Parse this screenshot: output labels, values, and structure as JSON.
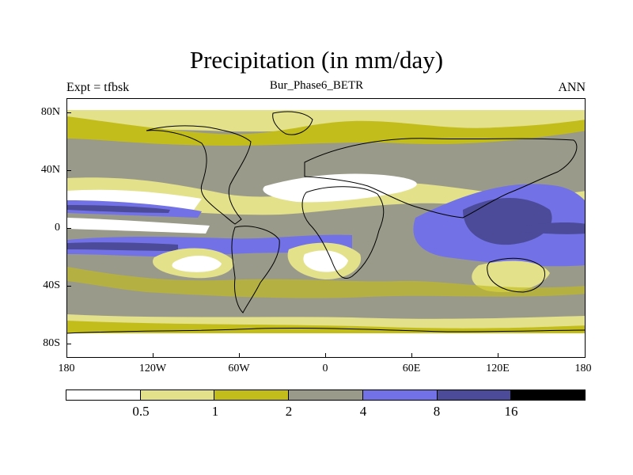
{
  "title": "Precipitation (in mm/day)",
  "subtitle": "Bur_Phase6_BETR",
  "left_label": "Expt = tfbsk",
  "right_label": "ANN",
  "lat_labels": [
    "80N",
    "40N",
    "0",
    "40S",
    "80S"
  ],
  "lon_labels": [
    "180",
    "120W",
    "60W",
    "0",
    "60E",
    "120E",
    "180"
  ],
  "colorbar": {
    "colors": [
      "#ffffff",
      "#e3e18a",
      "#c2bd1b",
      "#9a9a8a",
      "#7272e6",
      "#4b4b9a",
      "#000000"
    ],
    "labels": [
      "0.5",
      "1",
      "2",
      "4",
      "8",
      "16"
    ]
  }
}
